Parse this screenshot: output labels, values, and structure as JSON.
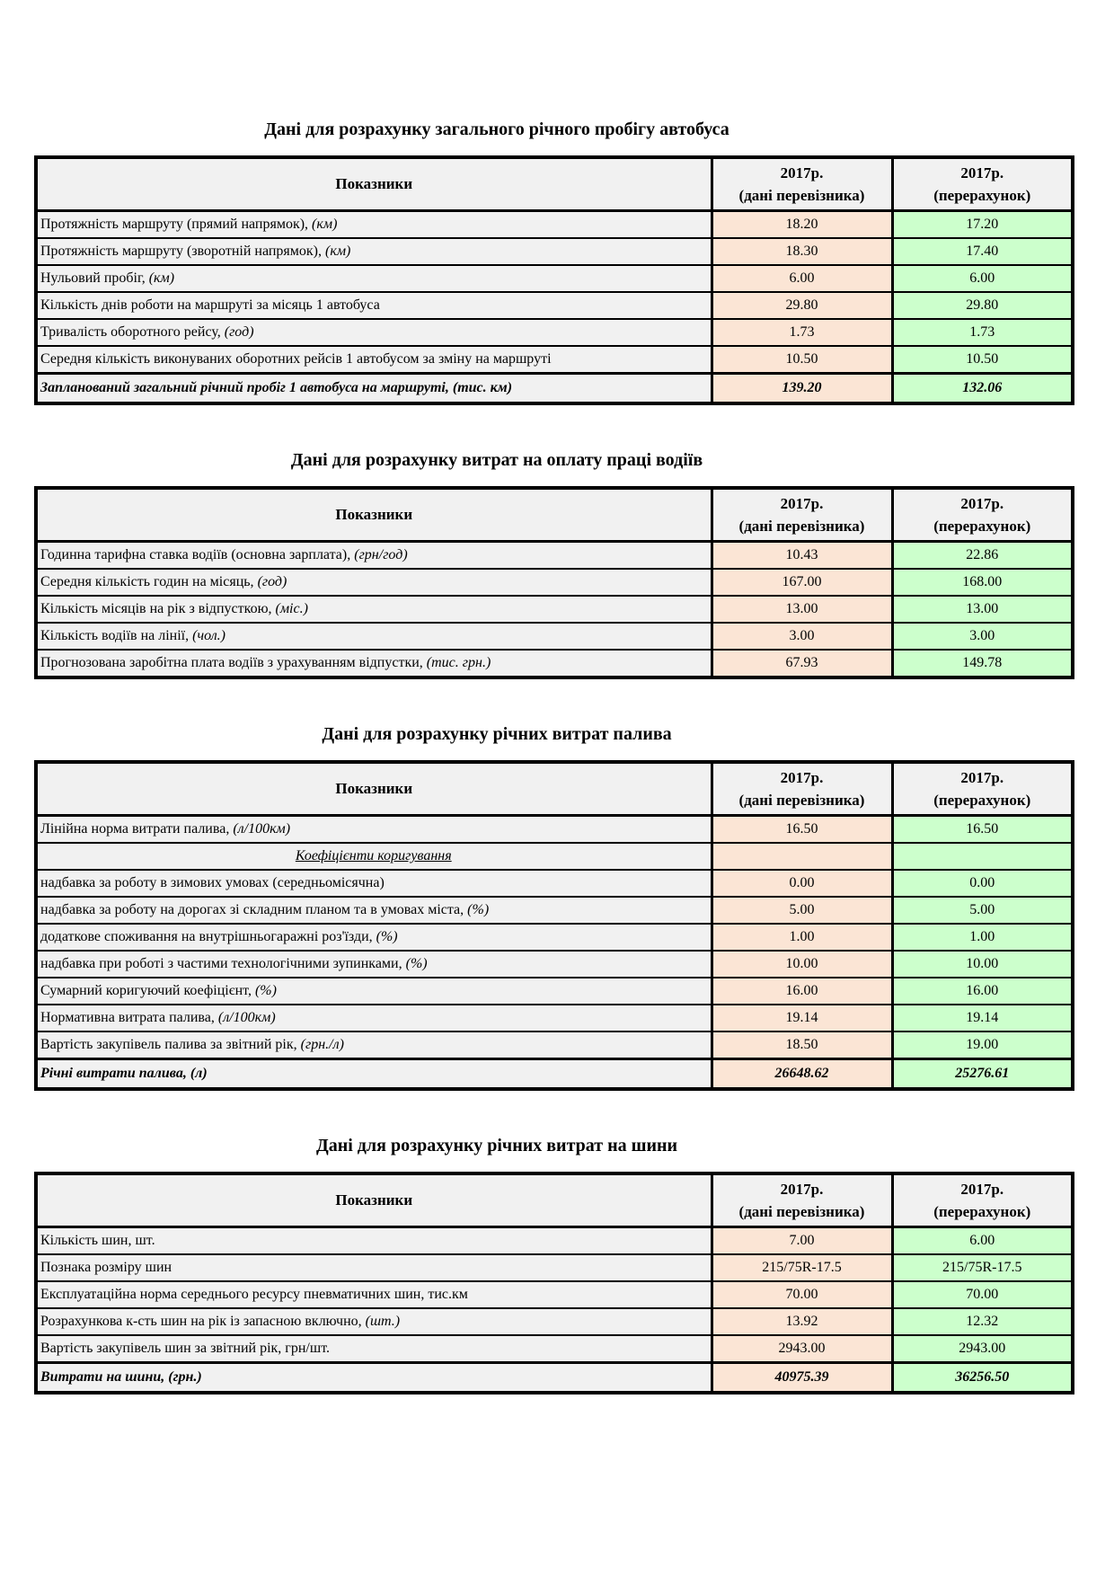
{
  "colors": {
    "carrier_bg": "#FBE5D5",
    "recalc_bg": "#CCFFCC",
    "label_bg": "#F1F1F1",
    "border": "#000000"
  },
  "headers": {
    "indicators": "Показники",
    "carrier_year": "2017р.",
    "carrier_sub": "(дані перевізника)",
    "recalc_year": "2017р.",
    "recalc_sub": "(перерахунок)"
  },
  "tables": [
    {
      "title": "Дані для розрахунку загального річного пробігу автобуса",
      "rows": [
        {
          "type": "data",
          "label": "Протяжність маршруту (прямий напрямок), ",
          "unit": "(км)",
          "carrier": "18.20",
          "recalc": "17.20"
        },
        {
          "type": "data",
          "label": "Протяжність маршруту (зворотній напрямок), ",
          "unit": "(км)",
          "carrier": "18.30",
          "recalc": "17.40"
        },
        {
          "type": "data",
          "label": "Нульовий пробіг, ",
          "unit": "(км)",
          "carrier": "6.00",
          "recalc": "6.00"
        },
        {
          "type": "data",
          "label": "Кількість днів роботи на маршруті за місяць 1 автобуса",
          "unit": "",
          "carrier": "29.80",
          "recalc": "29.80"
        },
        {
          "type": "data",
          "label": "Тривалість оборотного рейсу, ",
          "unit": "(год)",
          "carrier": "1.73",
          "recalc": "1.73"
        },
        {
          "type": "data",
          "label": "Середня кількість виконуваних оборотних рейсів 1 автобусом за зміну на маршруті",
          "unit": "",
          "carrier": "10.50",
          "recalc": "10.50"
        },
        {
          "type": "total",
          "label": "Запланований загальний річний пробіг 1 автобуса на маршруті, (тис. км)",
          "unit": "",
          "carrier": "139.20",
          "recalc": "132.06"
        }
      ]
    },
    {
      "title": "Дані для розрахунку витрат на оплату праці водіїв",
      "rows": [
        {
          "type": "data",
          "label": "Годинна тарифна ставка водіїв (основна зарплата), ",
          "unit": "(грн/год)",
          "carrier": "10.43",
          "recalc": "22.86"
        },
        {
          "type": "data",
          "label": "Середня кількість годин на місяць, ",
          "unit": "(год)",
          "carrier": "167.00",
          "recalc": "168.00"
        },
        {
          "type": "data",
          "label": "Кількість місяців на рік з відпусткою, ",
          "unit": "(міс.)",
          "carrier": "13.00",
          "recalc": "13.00"
        },
        {
          "type": "data",
          "label": "Кількість водіїв на лінії, ",
          "unit": "(чол.)",
          "carrier": "3.00",
          "recalc": "3.00"
        },
        {
          "type": "data",
          "label": "Прогнозована заробітна плата водіїв з урахуванням відпустки, ",
          "unit": "(тис. грн.)",
          "carrier": "67.93",
          "recalc": "149.78"
        }
      ]
    },
    {
      "title": "Дані для розрахунку річних витрат палива",
      "rows": [
        {
          "type": "data",
          "label": "Лінійна норма витрати палива, ",
          "unit": "(л/100км)",
          "carrier": "16.50",
          "recalc": "16.50"
        },
        {
          "type": "subheader",
          "label": "Коефіцієнти коригування",
          "unit": "",
          "carrier": "",
          "recalc": ""
        },
        {
          "type": "data",
          "label": "надбавка за роботу в зимових умовах (середньомісячна)",
          "unit": "",
          "carrier": "0.00",
          "recalc": "0.00"
        },
        {
          "type": "data",
          "label": "надбавка за роботу на дорогах зі складним планом та в умовах міста, ",
          "unit": "(%)",
          "carrier": "5.00",
          "recalc": "5.00"
        },
        {
          "type": "data",
          "label": "додаткове споживання на внутрішньогаражні роз'їзди,  ",
          "unit": "(%)",
          "carrier": "1.00",
          "recalc": "1.00"
        },
        {
          "type": "data",
          "label": "надбавка при роботі з частими технологічними зупинками,  ",
          "unit": "(%)",
          "carrier": "10.00",
          "recalc": "10.00"
        },
        {
          "type": "data",
          "label": "Сумарний коригуючий коефіцієнт,  ",
          "unit": "(%)",
          "carrier": "16.00",
          "recalc": "16.00"
        },
        {
          "type": "data",
          "label": "Нормативна витрата палива, ",
          "unit": "(л/100км)",
          "carrier": "19.14",
          "recalc": "19.14"
        },
        {
          "type": "data",
          "label": "Вартість закупівель палива за звітний рік, ",
          "unit": "(грн./л)",
          "carrier": "18.50",
          "recalc": "19.00"
        },
        {
          "type": "total",
          "label": "Річні витрати палива, (л)",
          "unit": "",
          "carrier": "26648.62",
          "recalc": "25276.61"
        }
      ]
    },
    {
      "title": "Дані для розрахунку річних витрат на шини",
      "rows": [
        {
          "type": "data",
          "label": "Кількість шин, шт.",
          "unit": "",
          "carrier": "7.00",
          "recalc": "6.00"
        },
        {
          "type": "data",
          "label": "Познака розміру шин",
          "unit": "",
          "carrier": "215/75R-17.5",
          "recalc": "215/75R-17.5"
        },
        {
          "type": "data",
          "label": "Експлуатаційна норма середнього ресурсу пневматичних шин, тис.км",
          "unit": "",
          "carrier": "70.00",
          "recalc": "70.00"
        },
        {
          "type": "data",
          "label": "Розрахункова к-сть шин на рік із запасною включно, ",
          "unit": "(шт.)",
          "carrier": "13.92",
          "recalc": "12.32"
        },
        {
          "type": "data",
          "label": "Вартість закупівель шин за звітний рік, грн/шт.",
          "unit": "",
          "carrier": "2943.00",
          "recalc": "2943.00"
        },
        {
          "type": "total",
          "label": "Витрати на шини, (грн.)",
          "unit": "",
          "carrier": "40975.39",
          "recalc": "36256.50"
        }
      ]
    }
  ]
}
